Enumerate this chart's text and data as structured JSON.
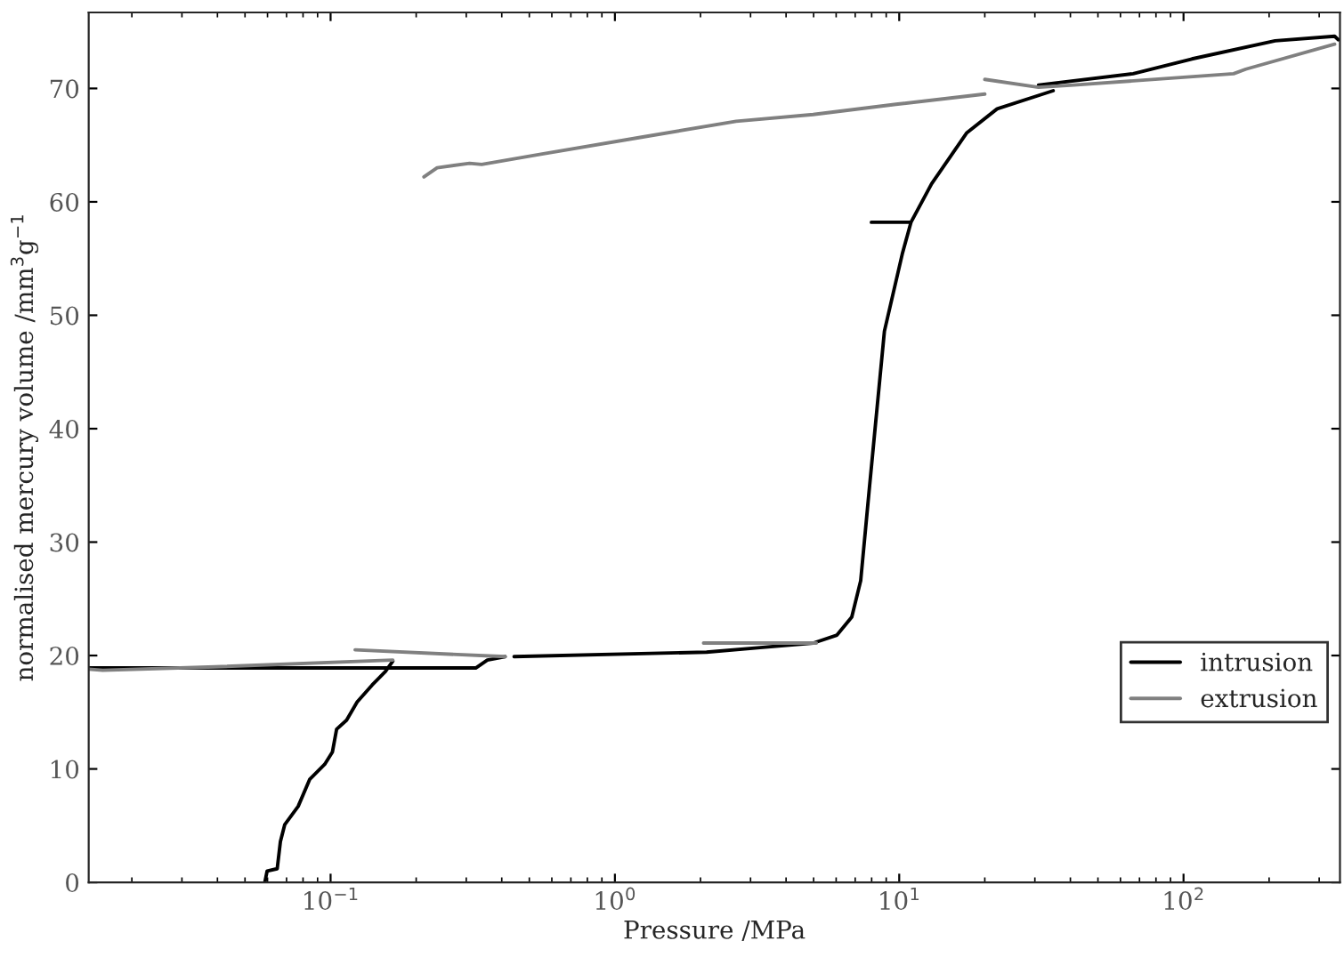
{
  "chart_data": {
    "type": "line",
    "xlabel": "Pressure /MPa",
    "ylabel": "normalised mercury volume /mm$^{3}$g$^{−1}$",
    "log": "x",
    "xlim": [
      0.0141,
      355
    ],
    "ylim": [
      0,
      76.7
    ],
    "xticks": [
      {
        "value": 0.1,
        "label": "10$^{−1}$"
      },
      {
        "value": 1,
        "label": "10$^{0}$"
      },
      {
        "value": 10,
        "label": "10$^{1}$"
      },
      {
        "value": 100,
        "label": "10$^{2}$"
      }
    ],
    "yticks": [
      0,
      10,
      20,
      30,
      40,
      50,
      60,
      70
    ],
    "grid": false,
    "legend": "bottom right",
    "marker": "none",
    "line_style": "solid",
    "series": [
      {
        "name": "intrusion",
        "color": "#000000",
        "x": [
          0.0587,
          0.0598,
          0.0649,
          0.0666,
          0.069,
          0.0769,
          0.0845,
          0.0953,
          0.1015,
          0.105,
          0.1138,
          0.124,
          0.14,
          0.156,
          0.1655,
          null,
          0.0141,
          0.324,
          0.356,
          0.411,
          null,
          0.442,
          2.1,
          3.24,
          4.99,
          6.04,
          6.81,
          7.32,
          7.87,
          8.87,
          10.25,
          11.0,
          13.0,
          17.3,
          22.1,
          34.8,
          null,
          30.9,
          66.5,
          107,
          210,
          340,
          350,
          null,
          7.98,
          11.0
        ],
        "values": [
          0,
          1,
          1.2,
          3.6,
          5.1,
          6.7,
          9.1,
          10.4,
          11.5,
          13.5,
          14.3,
          15.9,
          17.4,
          18.6,
          19.5,
          null,
          18.9,
          18.9,
          19.6,
          19.9,
          null,
          19.9,
          20.3,
          20.7,
          21.1,
          21.8,
          23.4,
          26.6,
          35.0,
          48.6,
          55.4,
          58.2,
          61.6,
          66.1,
          68.2,
          69.8,
          null,
          70.3,
          71.3,
          72.6,
          74.2,
          74.6,
          74.3,
          null,
          58.2,
          58.2
        ]
      },
      {
        "name": "extrusion",
        "color": "#808080",
        "x": [
          340,
          165.6,
          150,
          41.1,
          30.9,
          20.0,
          null,
          20.0,
          9.74,
          4.98,
          2.67,
          1.24,
          0.549,
          0.34,
          0.308,
          0.237,
          0.213,
          null,
          5.11,
          2.05,
          null,
          0.411,
          0.122,
          null,
          0.1655,
          0.0393,
          0.0158,
          0.0141
        ],
        "values": [
          73.9,
          71.7,
          71.3,
          70.3,
          70.1,
          70.8,
          null,
          69.5,
          68.6,
          67.7,
          67.1,
          65.7,
          64.2,
          63.3,
          63.4,
          63.0,
          62.2,
          null,
          21.1,
          21.1,
          null,
          19.9,
          20.5,
          null,
          19.6,
          19.0,
          18.7,
          18.8
        ]
      }
    ]
  }
}
